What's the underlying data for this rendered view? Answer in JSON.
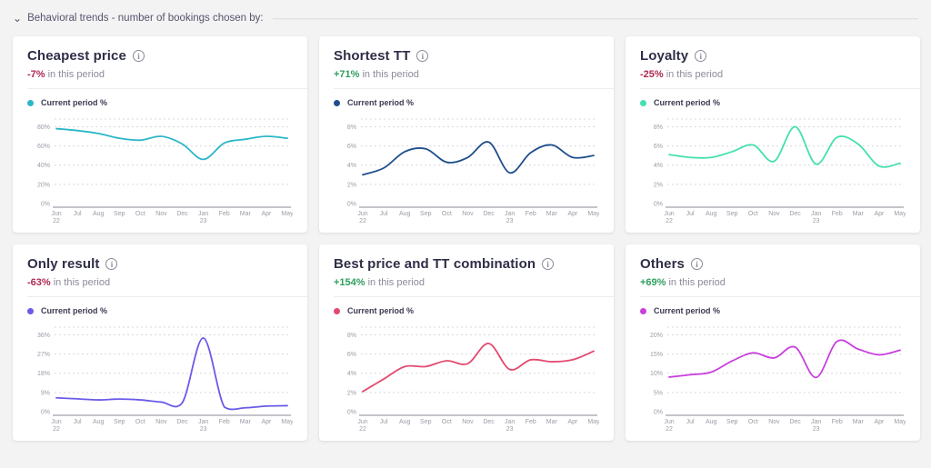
{
  "header": {
    "title": "Behavioral trends - number of bookings chosen by:"
  },
  "icons": {
    "chevron": "⌄",
    "info": "i"
  },
  "colors": {
    "negative": "#ad2a52",
    "positive": "#2f9e5e"
  },
  "cards": [
    {
      "title": "Cheapest price",
      "change": "-7%",
      "direction": "negative",
      "period_label": "in this period"
    },
    {
      "title": "Shortest TT",
      "change": "+71%",
      "direction": "positive",
      "period_label": "in this period"
    },
    {
      "title": "Loyalty",
      "change": "-25%",
      "direction": "negative",
      "period_label": "in this period"
    },
    {
      "title": "Only result",
      "change": "-63%",
      "direction": "negative",
      "period_label": "in this period"
    },
    {
      "title": "Best price and TT combination",
      "change": "+154%",
      "direction": "positive",
      "period_label": "in this period"
    },
    {
      "title": "Others",
      "change": "+69%",
      "direction": "positive",
      "period_label": "in this period"
    }
  ],
  "chart_data": [
    {
      "type": "line",
      "title": "Cheapest price",
      "legend": "Current period %",
      "color": "#2ab7c9",
      "x": [
        "Jun 22",
        "Jul",
        "Aug",
        "Sep",
        "Oct",
        "Nov",
        "Dec",
        "Jan 23",
        "Feb",
        "Mar",
        "Apr",
        "May"
      ],
      "values": [
        78,
        76,
        73,
        68,
        66,
        70,
        62,
        46,
        63,
        67,
        70,
        68
      ],
      "yticks": [
        0,
        20,
        40,
        60,
        80
      ],
      "ymax": 88,
      "unit": "%",
      "grid": "dashed",
      "legend_position": "top-left"
    },
    {
      "type": "line",
      "title": "Shortest TT",
      "legend": "Current period %",
      "color": "#1f4e8c",
      "x": [
        "Jun 22",
        "Jul",
        "Aug",
        "Sep",
        "Oct",
        "Nov",
        "Dec",
        "Jan 23",
        "Feb",
        "Mar",
        "Apr",
        "May"
      ],
      "values": [
        3.0,
        3.7,
        5.4,
        5.7,
        4.3,
        4.8,
        6.4,
        3.2,
        5.3,
        6.1,
        4.8,
        5.0
      ],
      "yticks": [
        0,
        2,
        4,
        6,
        8
      ],
      "ymax": 8.8,
      "unit": "%",
      "grid": "dashed",
      "legend_position": "top-left"
    },
    {
      "type": "line",
      "title": "Loyalty",
      "legend": "Current period %",
      "color": "#45e0b0",
      "x": [
        "Jun 22",
        "Jul",
        "Aug",
        "Sep",
        "Oct",
        "Nov",
        "Dec",
        "Jan 23",
        "Feb",
        "Mar",
        "Apr",
        "May"
      ],
      "values": [
        5.1,
        4.8,
        4.8,
        5.4,
        6.1,
        4.4,
        8.0,
        4.1,
        6.9,
        6.2,
        3.9,
        4.2
      ],
      "yticks": [
        0,
        2,
        4,
        6,
        8
      ],
      "ymax": 8.8,
      "unit": "%",
      "grid": "dashed",
      "legend_position": "top-left"
    },
    {
      "type": "line",
      "title": "Only result",
      "legend": "Current period %",
      "color": "#6a5ae8",
      "x": [
        "Jun 22",
        "Jul",
        "Aug",
        "Sep",
        "Oct",
        "Nov",
        "Dec",
        "Jan 23",
        "Feb",
        "Mar",
        "Apr",
        "May"
      ],
      "values": [
        6.5,
        6.0,
        5.5,
        5.9,
        5.5,
        4.5,
        4.2,
        34.5,
        2.2,
        1.8,
        2.6,
        2.8
      ],
      "yticks": [
        0,
        9,
        18,
        27,
        36
      ],
      "ymax": 39.6,
      "unit": "%",
      "grid": "dashed",
      "legend_position": "top-left"
    },
    {
      "type": "line",
      "title": "Best price and TT combination",
      "legend": "Current period %",
      "color": "#e34a70",
      "x": [
        "Jun 22",
        "Jul",
        "Aug",
        "Sep",
        "Oct",
        "Nov",
        "Dec",
        "Jan 23",
        "Feb",
        "Mar",
        "Apr",
        "May"
      ],
      "values": [
        2.1,
        3.4,
        4.7,
        4.7,
        5.3,
        5.0,
        7.1,
        4.4,
        5.4,
        5.2,
        5.4,
        6.3
      ],
      "yticks": [
        0,
        2,
        4,
        6,
        8
      ],
      "ymax": 8.8,
      "unit": "%",
      "grid": "dashed",
      "legend_position": "top-left"
    },
    {
      "type": "line",
      "title": "Others",
      "legend": "Current period %",
      "color": "#c840de",
      "x": [
        "Jun 22",
        "Jul",
        "Aug",
        "Sep",
        "Oct",
        "Nov",
        "Dec",
        "Jan 23",
        "Feb",
        "Mar",
        "Apr",
        "May"
      ],
      "values": [
        9.0,
        9.6,
        10.3,
        13.2,
        15.3,
        14.0,
        16.8,
        8.9,
        18.3,
        16.3,
        14.8,
        16.0
      ],
      "yticks": [
        0,
        5,
        10,
        15,
        20
      ],
      "ymax": 22,
      "unit": "%",
      "grid": "dashed",
      "legend_position": "top-left"
    }
  ]
}
